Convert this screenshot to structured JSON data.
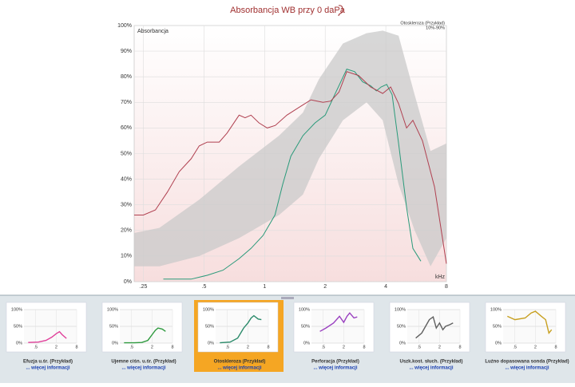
{
  "chart_data": {
    "type": "line",
    "title": "Absorbancja WB przy 0 daPa",
    "y_axis_label": "Absorbancja",
    "x_axis_label": "kHz",
    "xscale": "log",
    "xlim": [
      0.225,
      8
    ],
    "xticks": [
      {
        "value": 0.25,
        "label": ".25"
      },
      {
        "value": 0.5,
        "label": ".5"
      },
      1,
      2,
      4,
      8
    ],
    "ylim": [
      0,
      100
    ],
    "yticks": [
      {
        "value": 0,
        "label": "0%"
      },
      {
        "value": 10,
        "label": "10%"
      },
      {
        "value": 20,
        "label": "20%"
      },
      {
        "value": 30,
        "label": "30%"
      },
      {
        "value": 40,
        "label": "40%"
      },
      {
        "value": 50,
        "label": "50%"
      },
      {
        "value": 60,
        "label": "60%"
      },
      {
        "value": 70,
        "label": "70%"
      },
      {
        "value": 80,
        "label": "80%"
      },
      {
        "value": 90,
        "label": "90%"
      },
      {
        "value": 100,
        "label": "100%"
      }
    ],
    "grid": true,
    "legend": "top-right",
    "band": {
      "name": "10%-90%",
      "color": "#c9c9c9",
      "x": [
        0.225,
        0.3,
        0.473,
        0.747,
        1.18,
        1.55,
        1.86,
        2.45,
        3.21,
        3.86,
        4.63,
        5.56,
        6.67,
        8
      ],
      "upper": [
        19,
        21,
        32,
        45,
        57,
        66,
        79,
        93,
        97,
        98,
        96,
        73,
        51,
        54
      ],
      "lower": [
        6,
        6,
        10,
        17,
        26,
        34,
        48,
        63,
        70,
        63,
        38,
        20,
        6,
        17
      ]
    },
    "series": [
      {
        "name": "Otoskleroza (Przykład)",
        "color": "#2a9a7a",
        "x": [
          0.314,
          0.432,
          0.519,
          0.622,
          0.747,
          0.856,
          0.982,
          1.126,
          1.23,
          1.35,
          1.55,
          1.78,
          2.0,
          2.23,
          2.56,
          2.8,
          3.07,
          3.36,
          3.59,
          3.79,
          4.04,
          4.3,
          4.63,
          5.07,
          5.45,
          5.97
        ],
        "values": [
          1,
          1,
          2.5,
          4.5,
          9,
          13,
          18,
          26,
          38,
          49,
          57,
          62,
          65,
          73,
          83,
          82,
          78,
          76.5,
          74.5,
          76,
          77,
          73,
          54,
          29,
          13,
          8
        ]
      },
      {
        "color": "#b04050",
        "x": [
          0.225,
          0.25,
          0.287,
          0.329,
          0.377,
          0.432,
          0.473,
          0.519,
          0.595,
          0.651,
          0.747,
          0.8,
          0.856,
          0.938,
          1.03,
          1.13,
          1.29,
          1.48,
          1.7,
          1.95,
          2.13,
          2.34,
          2.56,
          2.93,
          3.36,
          3.86,
          4.23,
          4.63,
          5.07,
          5.45,
          6.08,
          6.98,
          8
        ],
        "values": [
          26,
          26,
          28,
          35,
          43,
          48,
          53,
          54.5,
          54.5,
          58,
          65,
          64,
          65,
          62,
          60,
          61,
          65,
          68,
          71,
          70,
          70.5,
          74,
          82,
          80.5,
          76,
          73.5,
          76,
          69.5,
          60,
          63,
          55,
          37,
          7
        ]
      }
    ]
  },
  "thumbnail_axes": {
    "xscale": "log",
    "xlim": [
      0.225,
      8
    ],
    "ylim": [
      0,
      100
    ],
    "xticks": [
      {
        "value": 0.5,
        "label": ".5"
      },
      2,
      8
    ],
    "yticks": [
      {
        "value": 0,
        "label": "0%"
      },
      {
        "value": 50,
        "label": "50%"
      },
      {
        "value": 100,
        "label": "100%"
      }
    ]
  },
  "thumbnails": [
    {
      "title": "Efuzja u.śr. (Przykład)",
      "link": "... więcej informacji",
      "color": "#e0409a",
      "x": [
        0.3,
        0.6,
        1,
        1.5,
        2,
        2.5,
        3,
        4
      ],
      "values": [
        2,
        3,
        8,
        18,
        28,
        34,
        25,
        14
      ]
    },
    {
      "title": "Ujemne ciśn. u.śr. (Przykład)",
      "link": "... więcej informacji",
      "color": "#2e9a3e",
      "x": [
        0.3,
        0.6,
        1,
        1.5,
        2,
        2.5,
        3,
        4,
        5
      ],
      "values": [
        1,
        1,
        2,
        8,
        25,
        38,
        45,
        42,
        35
      ]
    },
    {
      "title": "Otoskleroza (Przykład)",
      "link": "... więcej informacji",
      "color": "#2a8a6a",
      "selected": true,
      "x": [
        0.3,
        0.6,
        1,
        1.5,
        2,
        2.5,
        3,
        4,
        5
      ],
      "values": [
        1,
        3,
        15,
        45,
        60,
        75,
        82,
        72,
        70
      ]
    },
    {
      "title": "Perforacja (Przykład)",
      "link": "... więcej informacji",
      "color": "#9a40c0",
      "x": [
        0.4,
        0.6,
        1,
        1.5,
        2,
        2.5,
        3,
        4,
        5
      ],
      "values": [
        35,
        45,
        60,
        80,
        62,
        80,
        90,
        75,
        78
      ]
    },
    {
      "title": "Uszk.kost. słuch. (Przykład)",
      "link": "... więcej informacji",
      "color": "#606060",
      "x": [
        0.4,
        0.6,
        1,
        1.3,
        1.6,
        2,
        2.5,
        3,
        4,
        5
      ],
      "values": [
        15,
        30,
        70,
        78,
        45,
        60,
        40,
        50,
        55,
        60
      ]
    },
    {
      "title": "Luźno dopasowana sonda (Przykład)",
      "link": "... więcej informacji",
      "color": "#c8a020",
      "x": [
        0.3,
        0.5,
        1,
        1.5,
        2,
        3,
        4,
        5,
        6
      ],
      "values": [
        80,
        70,
        75,
        90,
        95,
        80,
        70,
        30,
        40
      ]
    }
  ]
}
